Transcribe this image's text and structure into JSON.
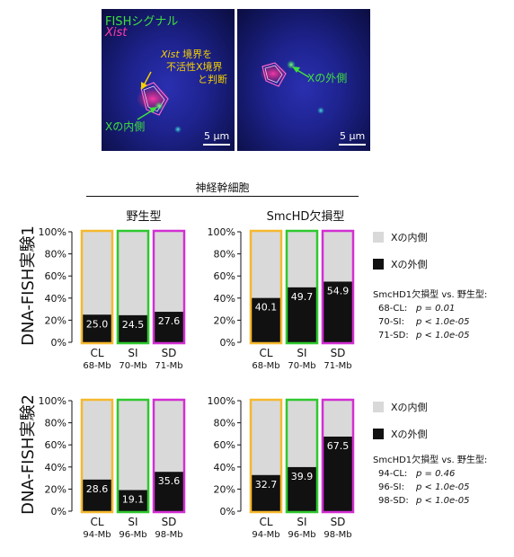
{
  "micrographs": {
    "left": {
      "label_fish": "FISHシグナル",
      "label_xist": "Xist",
      "annotation_1": "境界を",
      "annotation_2": "不活性X境界",
      "annotation_3": "と判断",
      "annotation_xist": "Xist",
      "inside_label": "Xの内側",
      "scale": "5 μm"
    },
    "right": {
      "outside_label": "Xの外側",
      "scale": "5 μm"
    }
  },
  "header": {
    "cell_type": "神経幹細胞",
    "wild_type": "野生型",
    "mutant": "SmcHD欠損型"
  },
  "row_labels": [
    "DNA-FISH実験1",
    "DNA-FISH実験2"
  ],
  "legend": {
    "inside": "Xの内側",
    "outside": "Xの外側"
  },
  "colors": {
    "CL": "#f5b82e",
    "SI": "#2ec82e",
    "SD": "#d22fd2",
    "inside": "#d9d9d9",
    "outside": "#111111"
  },
  "chart_data": [
    {
      "type": "bar",
      "panel": "実験1 野生型",
      "categories": [
        "CL",
        "SI",
        "SD"
      ],
      "sublabels": [
        "68-Mb",
        "70-Mb",
        "71-Mb"
      ],
      "series": [
        {
          "name": "Xの外側",
          "values": [
            25.0,
            24.5,
            27.6
          ]
        }
      ],
      "ylim": [
        0,
        100
      ],
      "yticks": [
        "0%",
        "20%",
        "40%",
        "60%",
        "80%",
        "100%"
      ]
    },
    {
      "type": "bar",
      "panel": "実験1 SmcHD欠損型",
      "categories": [
        "CL",
        "SI",
        "SD"
      ],
      "sublabels": [
        "68-Mb",
        "70-Mb",
        "71-Mb"
      ],
      "series": [
        {
          "name": "Xの外側",
          "values": [
            40.1,
            49.7,
            54.9
          ]
        }
      ],
      "ylim": [
        0,
        100
      ],
      "yticks": [
        "0%",
        "20%",
        "40%",
        "60%",
        "80%",
        "100%"
      ]
    },
    {
      "type": "bar",
      "panel": "実験2 野生型",
      "categories": [
        "CL",
        "SI",
        "SD"
      ],
      "sublabels": [
        "94-Mb",
        "96-Mb",
        "98-Mb"
      ],
      "series": [
        {
          "name": "Xの外側",
          "values": [
            28.6,
            19.1,
            35.6
          ]
        }
      ],
      "ylim": [
        0,
        100
      ],
      "yticks": [
        "0%",
        "20%",
        "40%",
        "60%",
        "80%",
        "100%"
      ]
    },
    {
      "type": "bar",
      "panel": "実験2 SmcHD欠損型",
      "categories": [
        "CL",
        "SI",
        "SD"
      ],
      "sublabels": [
        "94-Mb",
        "96-Mb",
        "98-Mb"
      ],
      "series": [
        {
          "name": "Xの外側",
          "values": [
            32.7,
            39.9,
            67.5
          ]
        }
      ],
      "ylim": [
        0,
        100
      ],
      "yticks": [
        "0%",
        "20%",
        "40%",
        "60%",
        "80%",
        "100%"
      ]
    }
  ],
  "stats": [
    {
      "title": "SmcHD1欠損型 vs. 野生型:",
      "rows": [
        {
          "label": "68-CL:",
          "p": "p = 0.01"
        },
        {
          "label": "70-SI:",
          "p": "p < 1.0e-05"
        },
        {
          "label": "71-SD:",
          "p": "p < 1.0e-05"
        }
      ]
    },
    {
      "title": "SmcHD1欠損型 vs. 野生型:",
      "rows": [
        {
          "label": "94-CL:",
          "p": "p = 0.46"
        },
        {
          "label": "96-SI:",
          "p": "p < 1.0e-05"
        },
        {
          "label": "98-SD:",
          "p": "p < 1.0e-05"
        }
      ]
    }
  ]
}
